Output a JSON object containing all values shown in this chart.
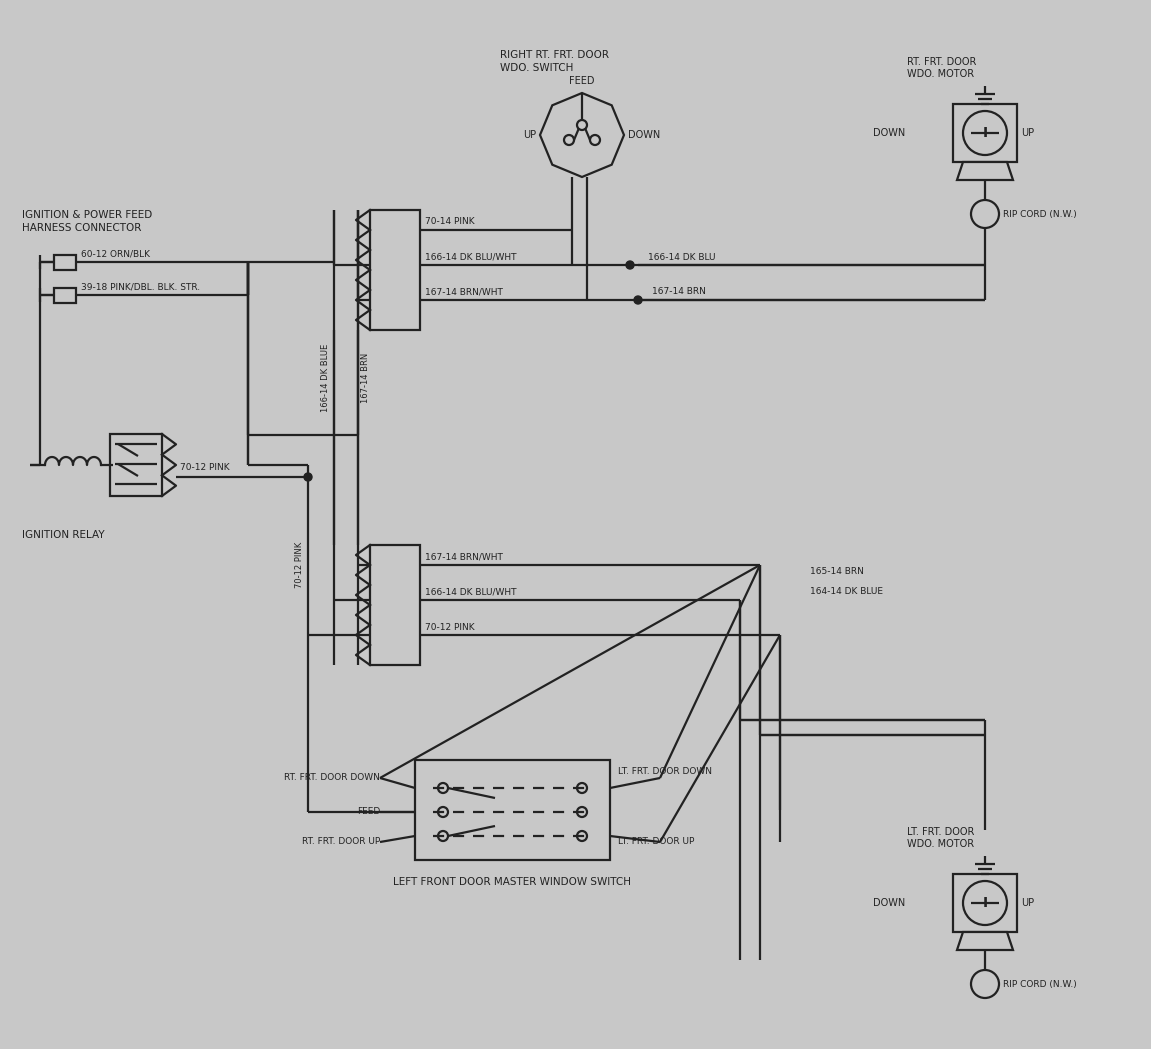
{
  "bg": "#c8c8c8",
  "lc": "#222222",
  "lw": 1.6,
  "texts": {
    "right_switch_l1": "RIGHT RT. FRT. DOOR",
    "right_switch_l2": "WDO. SWITCH",
    "rt_motor_l1": "RT. FRT. DOOR",
    "rt_motor_l2": "WDO. MOTOR",
    "lt_motor_l1": "LT. FRT. DOOR",
    "lt_motor_l2": "WDO. MOTOR",
    "ign_pwr_l1": "IGNITION & POWER FEED",
    "ign_pwr_l2": "HARNESS CONNECTOR",
    "ign_relay": "IGNITION RELAY",
    "left_sw": "LEFT FRONT DOOR MASTER WINDOW SWITCH",
    "feed": "FEED",
    "up": "UP",
    "down": "DOWN",
    "rip": "RIP CORD (N.W.)",
    "w70_14": "70-14 PINK",
    "w166_bw": "166-14 DK BLU/WHT",
    "w167_bw": "167-14 BRN/WHT",
    "w166_b": "166-14 DK BLU",
    "w167_b": "167-14 BRN",
    "w60_12": "60-12 ORN/BLK",
    "w39_18": "39-18 PINK/DBL. BLK. STR.",
    "w70_12": "70-12 PINK",
    "v166": "166-14 DK BLUE",
    "v167": "167-14 BRN",
    "v70": "70-12 PINK",
    "w167_bw2": "167-14 BRN/WHT",
    "w166_bw2": "166-14 DK BLU/WHT",
    "w70_12b": "70-12 PINK",
    "w164": "164-14 DK BLUE",
    "w165": "165-14 BRN",
    "lt_dn": "LT. FRT. DOOR DOWN",
    "rt_dn": "RT. FRT. DOOR DOWN",
    "feed_b": "FEED",
    "rt_up": "RT. FRT. DOOR UP",
    "lt_up": "LT. FRT. DOOR UP"
  }
}
